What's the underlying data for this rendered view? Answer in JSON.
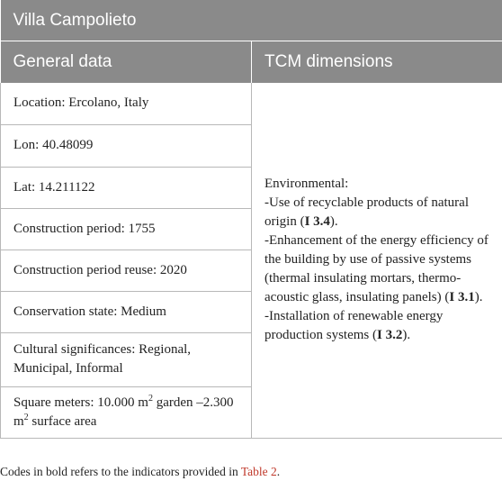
{
  "table": {
    "title": "Villa Campolieto",
    "headers": [
      "General data",
      "TCM dimensions"
    ],
    "rows": [
      "Location: Ercolano, Italy",
      "Lon: 40.48099",
      "Lat: 14.211122",
      "Construction period: 1755",
      "Construction period reuse: 2020",
      "Conservation state: Medium",
      "Cultural significances: Regional, Municipal, Informal"
    ],
    "square_meters": {
      "prefix": "Square meters: 10.000 m",
      "sup1": "2",
      "middle": " garden –2.300 m",
      "sup2": "2",
      "suffix": " surface area"
    },
    "tcm": {
      "heading": "Environmental:",
      "item1_text": "-Use of recyclable products of natural origin (",
      "item1_code": "I 3.4",
      "item1_end": ").",
      "item2_text": "-Enhancement of the energy efficiency of the building by use of passive systems (thermal insulating mortars, thermo-acoustic glass, insulating panels) (",
      "item2_code": "I 3.1",
      "item2_end": ").",
      "item3_text": "-Installation of renewable energy production systems (",
      "item3_code": "I 3.2",
      "item3_end": ")."
    }
  },
  "footnote": {
    "text": "Codes in bold refers to the indicators provided in ",
    "link": "Table 2",
    "end": "."
  }
}
